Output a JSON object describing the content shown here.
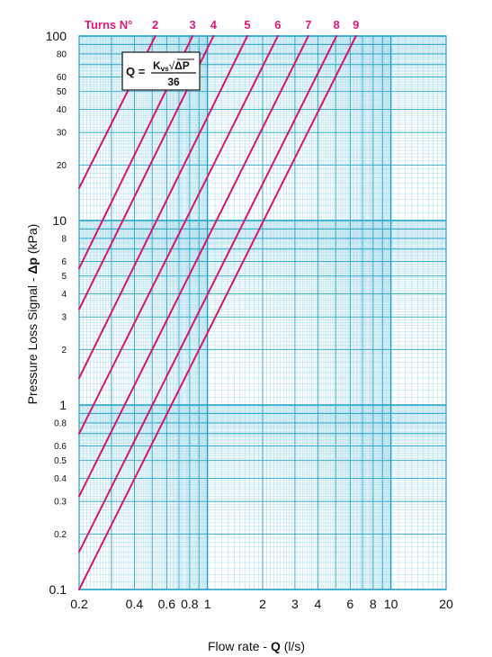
{
  "chart_data": {
    "type": "line",
    "xlabel": "Flow rate - Q (l/s)",
    "xlabel_parts": {
      "prefix": "Flow rate - ",
      "bold": "Q",
      "suffix": " (l/s)"
    },
    "ylabel": "Pressure Loss Signal - Δp (kPa)",
    "ylabel_parts": {
      "prefix": "Pressure Loss Signal  - ",
      "bold": "Δp",
      "suffix": " (kPa)"
    },
    "x_scale": "log",
    "y_scale": "log",
    "xlim": [
      0.2,
      20
    ],
    "ylim": [
      0.1,
      100
    ],
    "grid": true,
    "x_ticks": [
      "0.2",
      "0.4",
      "0.6",
      "0.8",
      "1",
      "2",
      "3",
      "4",
      "6",
      "8",
      "10",
      "20"
    ],
    "x_tick_values": [
      0.2,
      0.4,
      0.6,
      0.8,
      1,
      2,
      3,
      4,
      6,
      8,
      10,
      20
    ],
    "y_ticks": [
      "0.1",
      "0.2",
      "0.3",
      "0.4",
      "0.5",
      "0.6",
      "0.8",
      "1",
      "2",
      "3",
      "4",
      "5",
      "6",
      "8",
      "10",
      "20",
      "30",
      "40",
      "50",
      "60",
      "80",
      "100"
    ],
    "y_tick_values": [
      0.1,
      0.2,
      0.3,
      0.4,
      0.5,
      0.6,
      0.8,
      1,
      2,
      3,
      4,
      5,
      6,
      8,
      10,
      20,
      30,
      40,
      50,
      60,
      80,
      100
    ],
    "legend_title": "Turns N°",
    "series": [
      {
        "name": "2",
        "x": [
          0.2,
          0.52
        ],
        "y": [
          15,
          100
        ]
      },
      {
        "name": "3",
        "x": [
          0.2,
          0.83
        ],
        "y": [
          5.5,
          100
        ]
      },
      {
        "name": "4",
        "x": [
          0.2,
          1.08
        ],
        "y": [
          3.3,
          100
        ]
      },
      {
        "name": "5",
        "x": [
          0.2,
          1.65
        ],
        "y": [
          1.4,
          100
        ]
      },
      {
        "name": "6",
        "x": [
          0.2,
          2.42
        ],
        "y": [
          0.7,
          100
        ]
      },
      {
        "name": "7",
        "x": [
          0.2,
          3.55
        ],
        "y": [
          0.32,
          100
        ]
      },
      {
        "name": "8",
        "x": [
          0.2,
          5.05
        ],
        "y": [
          0.16,
          100
        ]
      },
      {
        "name": "9",
        "x": [
          0.2,
          6.45
        ],
        "y": [
          0.1,
          100
        ]
      }
    ],
    "formula": {
      "lhs": "Q =",
      "numerator_k": "K",
      "numerator_sub": "vs",
      "radical": "√",
      "numerator_radicand": "ΔP",
      "denominator": "36"
    },
    "colors": {
      "line": "#d6166e",
      "grid_major": "#1ea2c8",
      "grid_minor": "#9fd7e8",
      "label": "#e01a79",
      "border": "#1ea2c8"
    }
  }
}
